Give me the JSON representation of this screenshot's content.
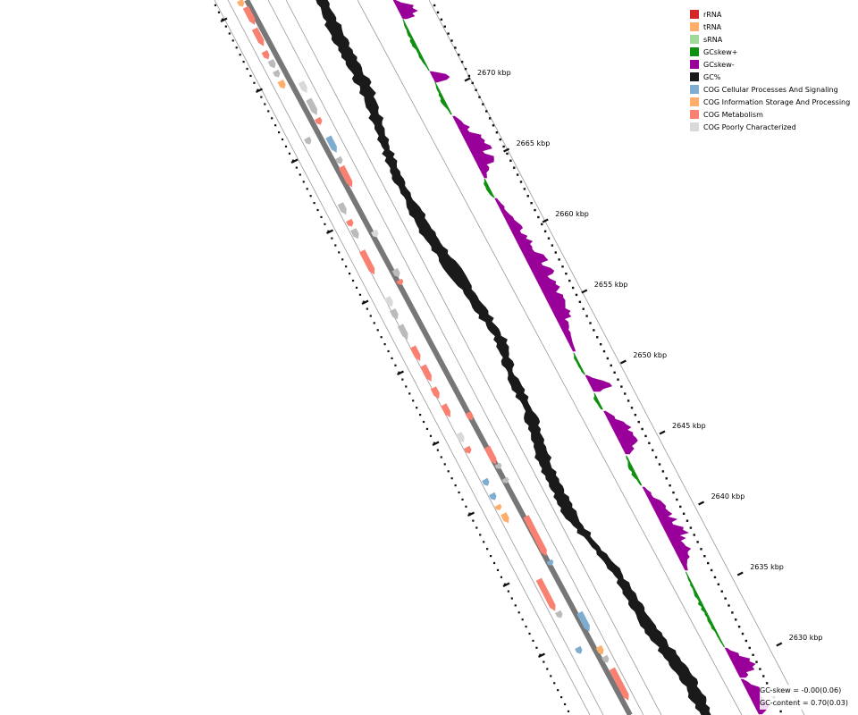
{
  "legend": {
    "items": [
      {
        "label": "rRNA",
        "color": "#d62728"
      },
      {
        "label": "tRNA",
        "color": "#fdae6b"
      },
      {
        "label": "sRNA",
        "color": "#a1d99b"
      },
      {
        "label": "GCskew+",
        "color": "#109010"
      },
      {
        "label": "GCskew-",
        "color": "#990099"
      },
      {
        "label": "GC%",
        "color": "#1a1a1a"
      },
      {
        "label": "COG Cellular Processes And Signaling",
        "color": "#7fadd0"
      },
      {
        "label": "COG Information Storage And Processing",
        "color": "#fdae6b"
      },
      {
        "label": "COG Metabolism",
        "color": "#fa8072"
      },
      {
        "label": "COG Poorly Characterized",
        "color": "#d9d9d9"
      }
    ]
  },
  "ticks": [
    {
      "kbp": 2670,
      "label": "2670 kbp"
    },
    {
      "kbp": 2665,
      "label": "2665 kbp"
    },
    {
      "kbp": 2660,
      "label": "2660 kbp"
    },
    {
      "kbp": 2655,
      "label": "2655 kbp"
    },
    {
      "kbp": 2650,
      "label": "2650 kbp"
    },
    {
      "kbp": 2645,
      "label": "2645 kbp"
    },
    {
      "kbp": 2640,
      "label": "2640 kbp"
    },
    {
      "kbp": 2635,
      "label": "2635 kbp"
    },
    {
      "kbp": 2630,
      "label": "2630 kbp"
    }
  ],
  "stats": {
    "gc_skew": "GC-skew = -0.00(0.06)",
    "gc_content": "GC-content = 0.70(0.03)"
  }
}
